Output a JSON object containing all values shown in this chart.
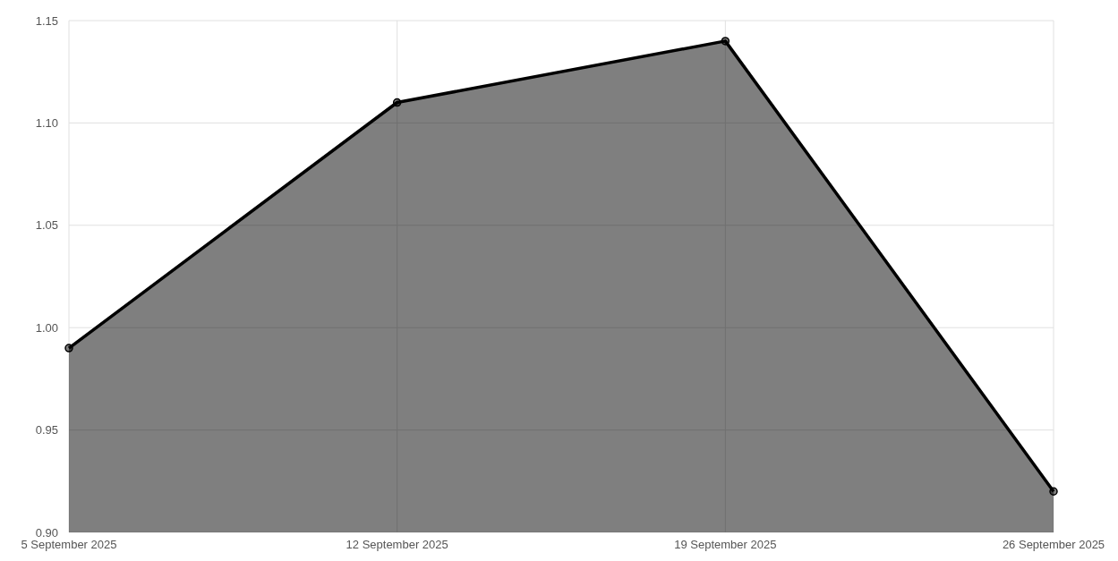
{
  "chart_data": {
    "type": "area",
    "categories": [
      "5 September 2025",
      "12 September 2025",
      "19 September 2025",
      "26 September 2025"
    ],
    "series": [
      {
        "color": "#000000",
        "values": [
          0.99,
          1.11,
          1.14,
          0.92
        ]
      }
    ],
    "ylim": [
      0.9,
      1.15
    ],
    "yticks": [
      {
        "value": 0.9,
        "label": "0.90"
      },
      {
        "value": 0.95,
        "label": "0.95"
      },
      {
        "value": 1.0,
        "label": "1.00"
      },
      {
        "value": 1.05,
        "label": "1.05"
      },
      {
        "value": 1.1,
        "label": "1.10"
      },
      {
        "value": 1.15,
        "label": "1.15"
      }
    ],
    "grid": true,
    "marker": "circle"
  }
}
